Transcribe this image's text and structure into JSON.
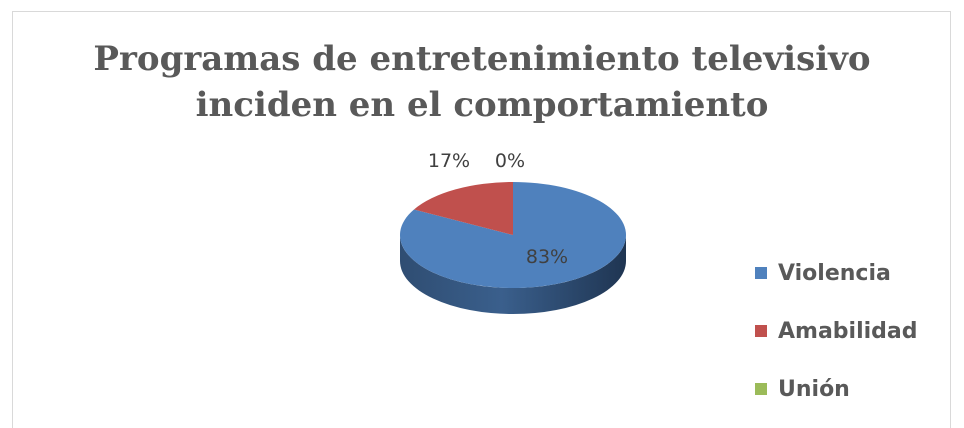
{
  "chart_data": {
    "type": "pie",
    "title_lines": [
      "Programas de entretenimiento televisivo",
      "inciden en el comportamiento"
    ],
    "categories": [
      "Violencia",
      "Amabilidad",
      "Unión"
    ],
    "values": [
      83,
      17,
      0
    ],
    "labels": [
      "83%",
      "17%",
      "0%"
    ],
    "colors": [
      "#4f81bd",
      "#c0504d",
      "#9bbb59"
    ],
    "legend_position": "right",
    "style": "3d"
  }
}
